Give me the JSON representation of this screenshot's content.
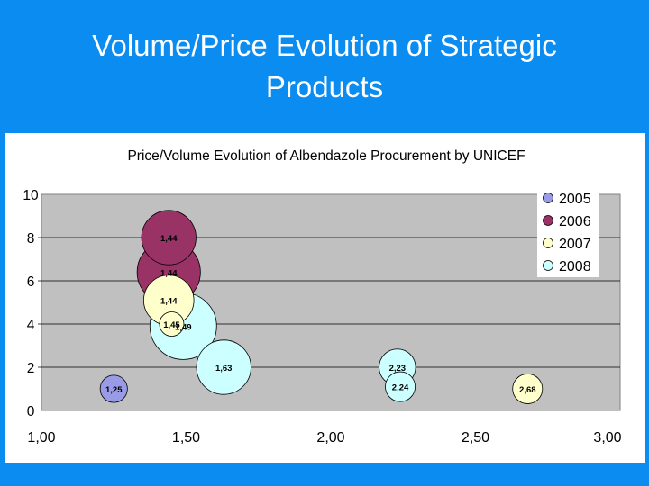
{
  "slide": {
    "title_line1": "Volume/Price Evolution of Strategic",
    "title_line2": "Products"
  },
  "colors": {
    "background": "#0b8cf1",
    "plot_area": "#c0c0c0",
    "2005": "#9a9be6",
    "2006": "#993366",
    "2007": "#ffffcc",
    "2008": "#ccffff"
  },
  "chart_data": {
    "type": "bubble",
    "title": "Price/Volume Evolution of Albendazole Procurement by UNICEF",
    "xlabel": "",
    "ylabel": "",
    "xlim": [
      1.0,
      3.0
    ],
    "ylim": [
      0,
      10
    ],
    "x_ticks": [
      "1,00",
      "1,50",
      "2,00",
      "2,50",
      "3,00"
    ],
    "y_ticks": [
      "0",
      "2",
      "4",
      "6",
      "8",
      "10"
    ],
    "grid": "horizontal",
    "legend_position": "top-right",
    "series": [
      {
        "name": "2005",
        "color": "#9a9be6",
        "points": [
          {
            "x": 1.25,
            "y": 1.0,
            "size": 0.5,
            "label": "1,25"
          }
        ]
      },
      {
        "name": "2006",
        "color": "#993366",
        "points": [
          {
            "x": 1.44,
            "y": 8.0,
            "size": 2.0,
            "label": "1,44"
          },
          {
            "x": 1.44,
            "y": 6.4,
            "size": 2.7,
            "label": "1,44"
          }
        ]
      },
      {
        "name": "2007",
        "color": "#ffffcc",
        "points": [
          {
            "x": 1.44,
            "y": 5.1,
            "size": 1.7,
            "label": "1,44"
          },
          {
            "x": 1.45,
            "y": 4.0,
            "size": 0.4,
            "label": "1,45"
          },
          {
            "x": 2.68,
            "y": 1.0,
            "size": 0.6,
            "label": "2,68"
          }
        ]
      },
      {
        "name": "2008",
        "color": "#ccffff",
        "points": [
          {
            "x": 1.49,
            "y": 3.9,
            "size": 3.0,
            "label": "1,49"
          },
          {
            "x": 1.63,
            "y": 2.0,
            "size": 2.0,
            "label": "1,63"
          },
          {
            "x": 2.23,
            "y": 2.0,
            "size": 0.9,
            "label": "2,23"
          },
          {
            "x": 2.24,
            "y": 1.1,
            "size": 0.6,
            "label": "2,24"
          }
        ]
      }
    ]
  }
}
